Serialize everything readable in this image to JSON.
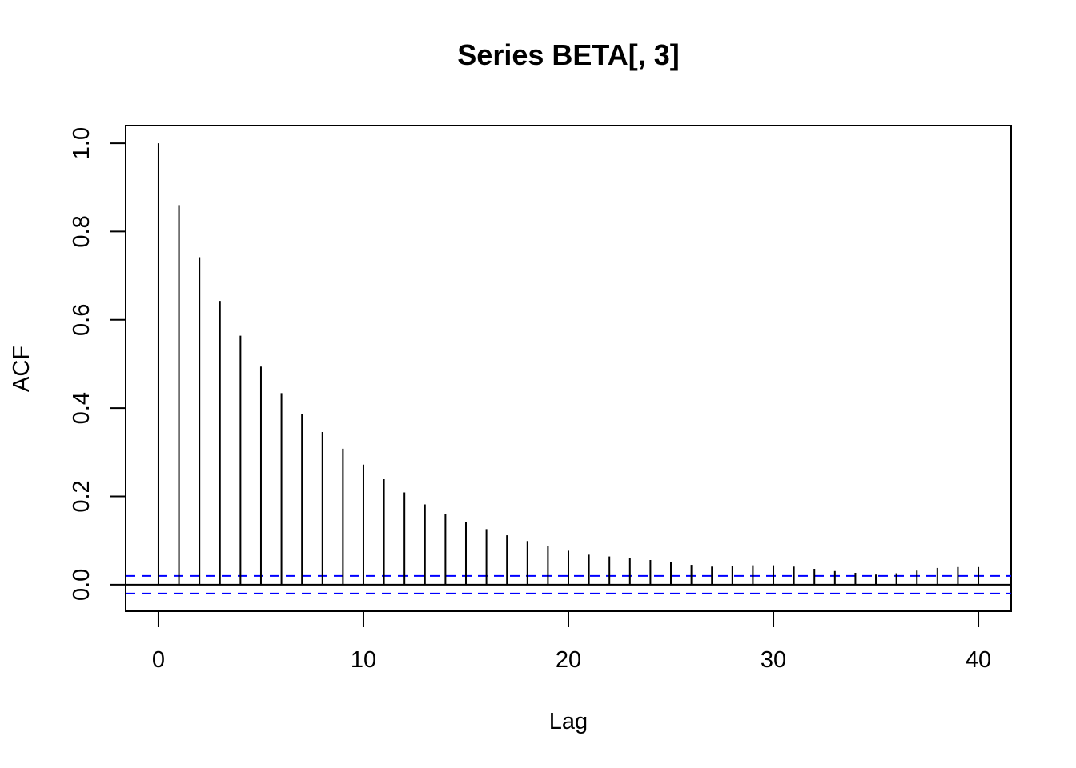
{
  "chart_data": {
    "type": "bar",
    "title": "Series  BETA[, 3]",
    "xlabel": "Lag",
    "ylabel": "ACF",
    "xlim": [
      -1.6,
      41.6
    ],
    "ylim": [
      -0.06,
      1.04
    ],
    "x_ticks": [
      0,
      10,
      20,
      30,
      40
    ],
    "y_ticks": [
      0.0,
      0.2,
      0.4,
      0.6,
      0.8,
      1.0
    ],
    "y_tick_labels": [
      "0.0",
      "0.2",
      "0.4",
      "0.6",
      "0.8",
      "1.0"
    ],
    "lags": [
      0,
      1,
      2,
      3,
      4,
      5,
      6,
      7,
      8,
      9,
      10,
      11,
      12,
      13,
      14,
      15,
      16,
      17,
      18,
      19,
      20,
      21,
      22,
      23,
      24,
      25,
      26,
      27,
      28,
      29,
      30,
      31,
      32,
      33,
      34,
      35,
      36,
      37,
      38,
      39,
      40
    ],
    "values": [
      1.0,
      0.86,
      0.742,
      0.643,
      0.564,
      0.494,
      0.434,
      0.386,
      0.346,
      0.308,
      0.272,
      0.239,
      0.209,
      0.182,
      0.161,
      0.142,
      0.126,
      0.112,
      0.099,
      0.088,
      0.077,
      0.068,
      0.064,
      0.06,
      0.056,
      0.052,
      0.045,
      0.041,
      0.042,
      0.044,
      0.044,
      0.041,
      0.036,
      0.031,
      0.027,
      0.023,
      0.026,
      0.032,
      0.038,
      0.04,
      0.04
    ],
    "confidence_band": [
      0.02,
      -0.02
    ],
    "colors": {
      "bars": "#000000",
      "confidence": "#0000ff",
      "axis": "#000000"
    }
  }
}
